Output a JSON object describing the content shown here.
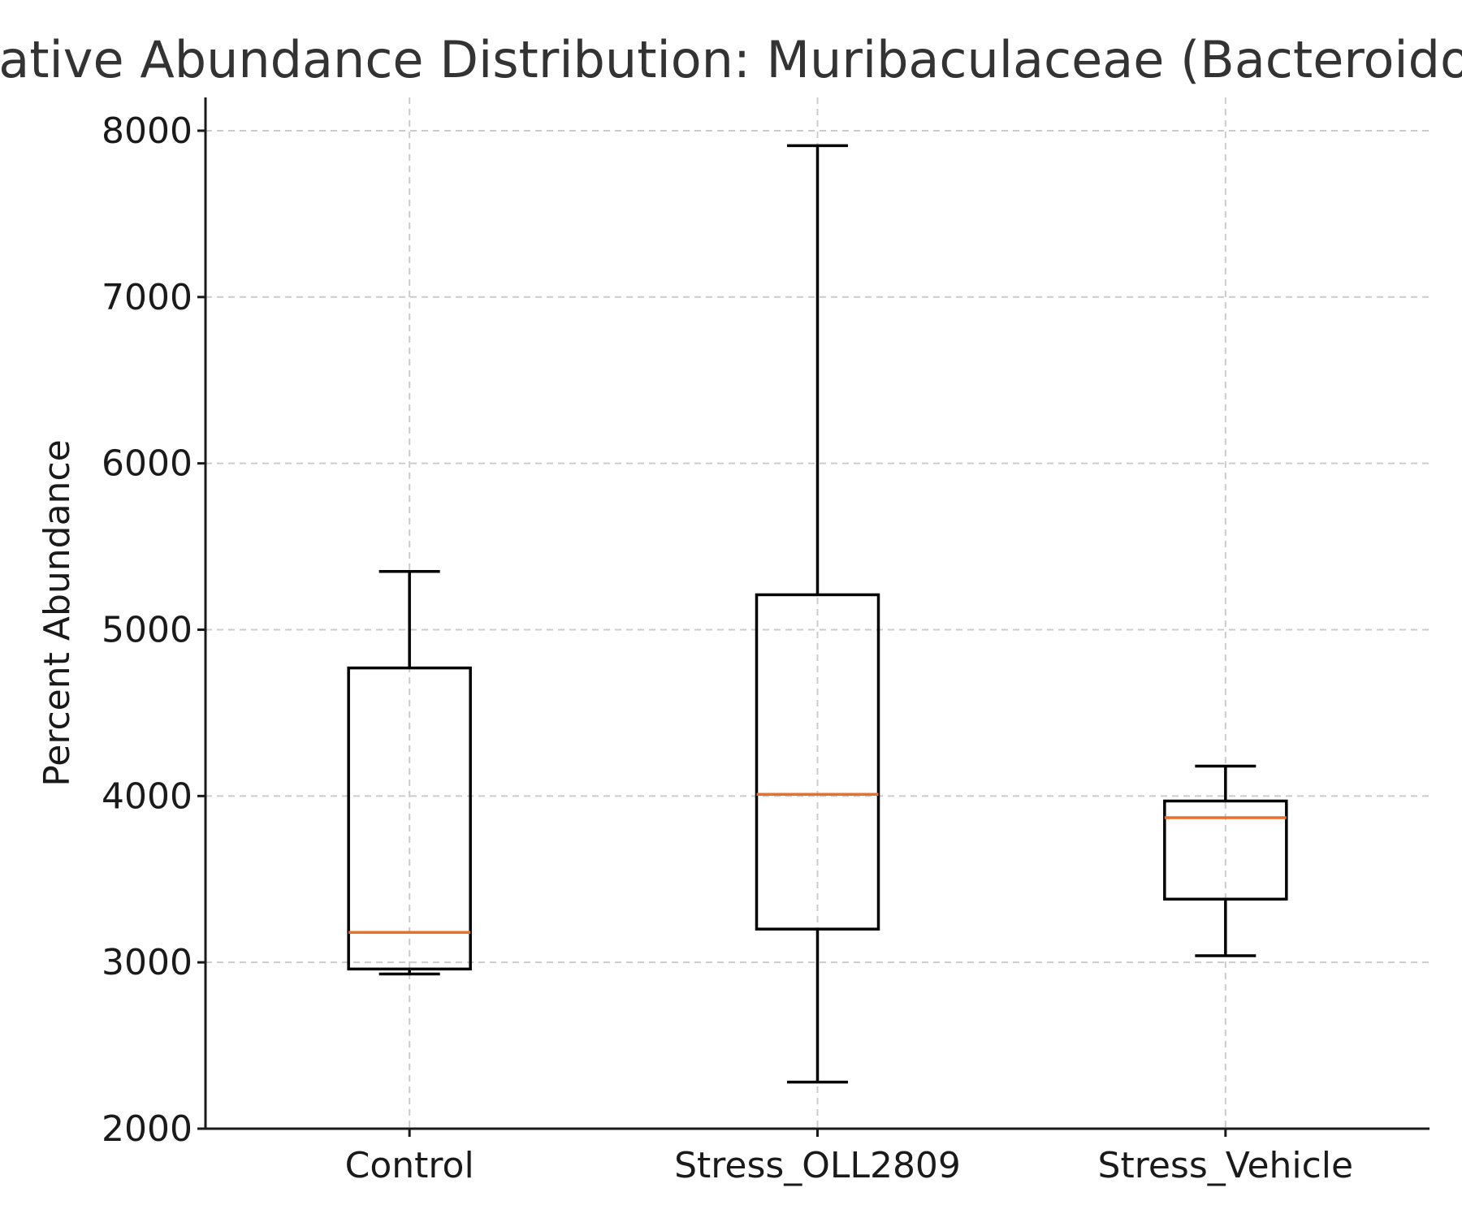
{
  "chart_data": {
    "type": "boxplot",
    "title": "Relative Abundance Distribution: Muribaculaceae (Bacteroidota)",
    "xlabel": "",
    "ylabel": "Percent Abundance",
    "ylim": [
      2000,
      8200
    ],
    "yticks": [
      2000,
      3000,
      4000,
      5000,
      6000,
      7000,
      8000
    ],
    "grid": true,
    "categories": [
      "Control",
      "Stress_OLL2809",
      "Stress_Vehicle"
    ],
    "boxes": [
      {
        "category": "Control",
        "whisker_low": 2930,
        "q1": 2960,
        "median": 3180,
        "q3": 4770,
        "whisker_high": 5350
      },
      {
        "category": "Stress_OLL2809",
        "whisker_low": 2280,
        "q1": 3200,
        "median": 4010,
        "q3": 5210,
        "whisker_high": 7910
      },
      {
        "category": "Stress_Vehicle",
        "whisker_low": 3040,
        "q1": 3380,
        "median": 3870,
        "q3": 3970,
        "whisker_high": 4180
      }
    ],
    "colors": {
      "box": "#000000",
      "median": "#e8702a",
      "grid": "#cccccc"
    }
  }
}
